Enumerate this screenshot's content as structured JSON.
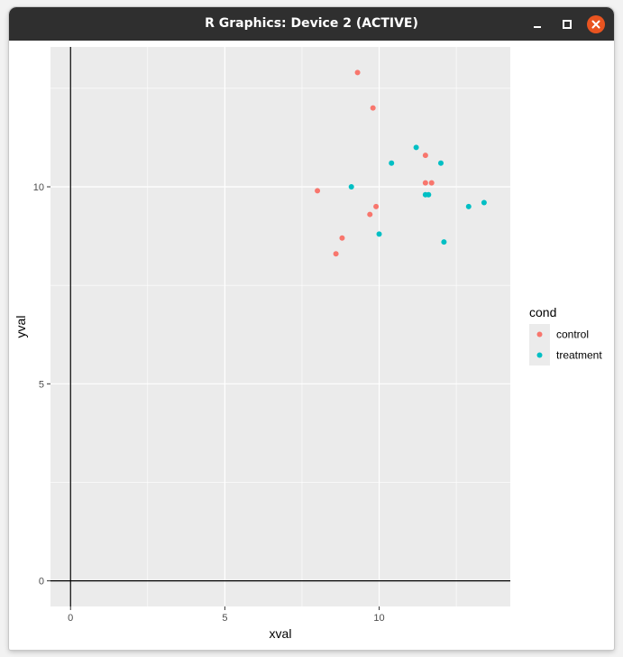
{
  "window": {
    "title": "R Graphics: Device 2 (ACTIVE)"
  },
  "colors": {
    "panel_background": "#ebebeb",
    "grid": "#ffffff",
    "control": "#f8766d",
    "treatment": "#00bfc4",
    "close_button": "#e95420",
    "titlebar": "#2f2f2f"
  },
  "chart_data": {
    "type": "scatter",
    "xlabel": "xval",
    "ylabel": "yval",
    "xlim": [
      -0.65,
      14.25
    ],
    "ylim": [
      -0.65,
      13.55
    ],
    "x_ticks": [
      0,
      5,
      10
    ],
    "y_ticks": [
      0,
      5,
      10
    ],
    "grid": true,
    "reference_lines": {
      "x": 0,
      "y": 0
    },
    "legend": {
      "title": "cond",
      "position": "right",
      "entries": [
        "control",
        "treatment"
      ]
    },
    "series": [
      {
        "name": "control",
        "color": "#f8766d",
        "points": [
          [
            9.3,
            12.9
          ],
          [
            9.8,
            12.0
          ],
          [
            11.5,
            10.8
          ],
          [
            11.5,
            10.1
          ],
          [
            11.7,
            10.1
          ],
          [
            8.0,
            9.9
          ],
          [
            9.9,
            9.5
          ],
          [
            9.7,
            9.3
          ],
          [
            8.8,
            8.7
          ],
          [
            8.6,
            8.3
          ]
        ]
      },
      {
        "name": "treatment",
        "color": "#00bfc4",
        "points": [
          [
            11.2,
            11.0
          ],
          [
            10.4,
            10.6
          ],
          [
            12.0,
            10.6
          ],
          [
            9.1,
            10.0
          ],
          [
            11.5,
            9.8
          ],
          [
            11.6,
            9.8
          ],
          [
            13.4,
            9.6
          ],
          [
            12.9,
            9.5
          ],
          [
            10.0,
            8.8
          ],
          [
            12.1,
            8.6
          ]
        ]
      }
    ]
  }
}
